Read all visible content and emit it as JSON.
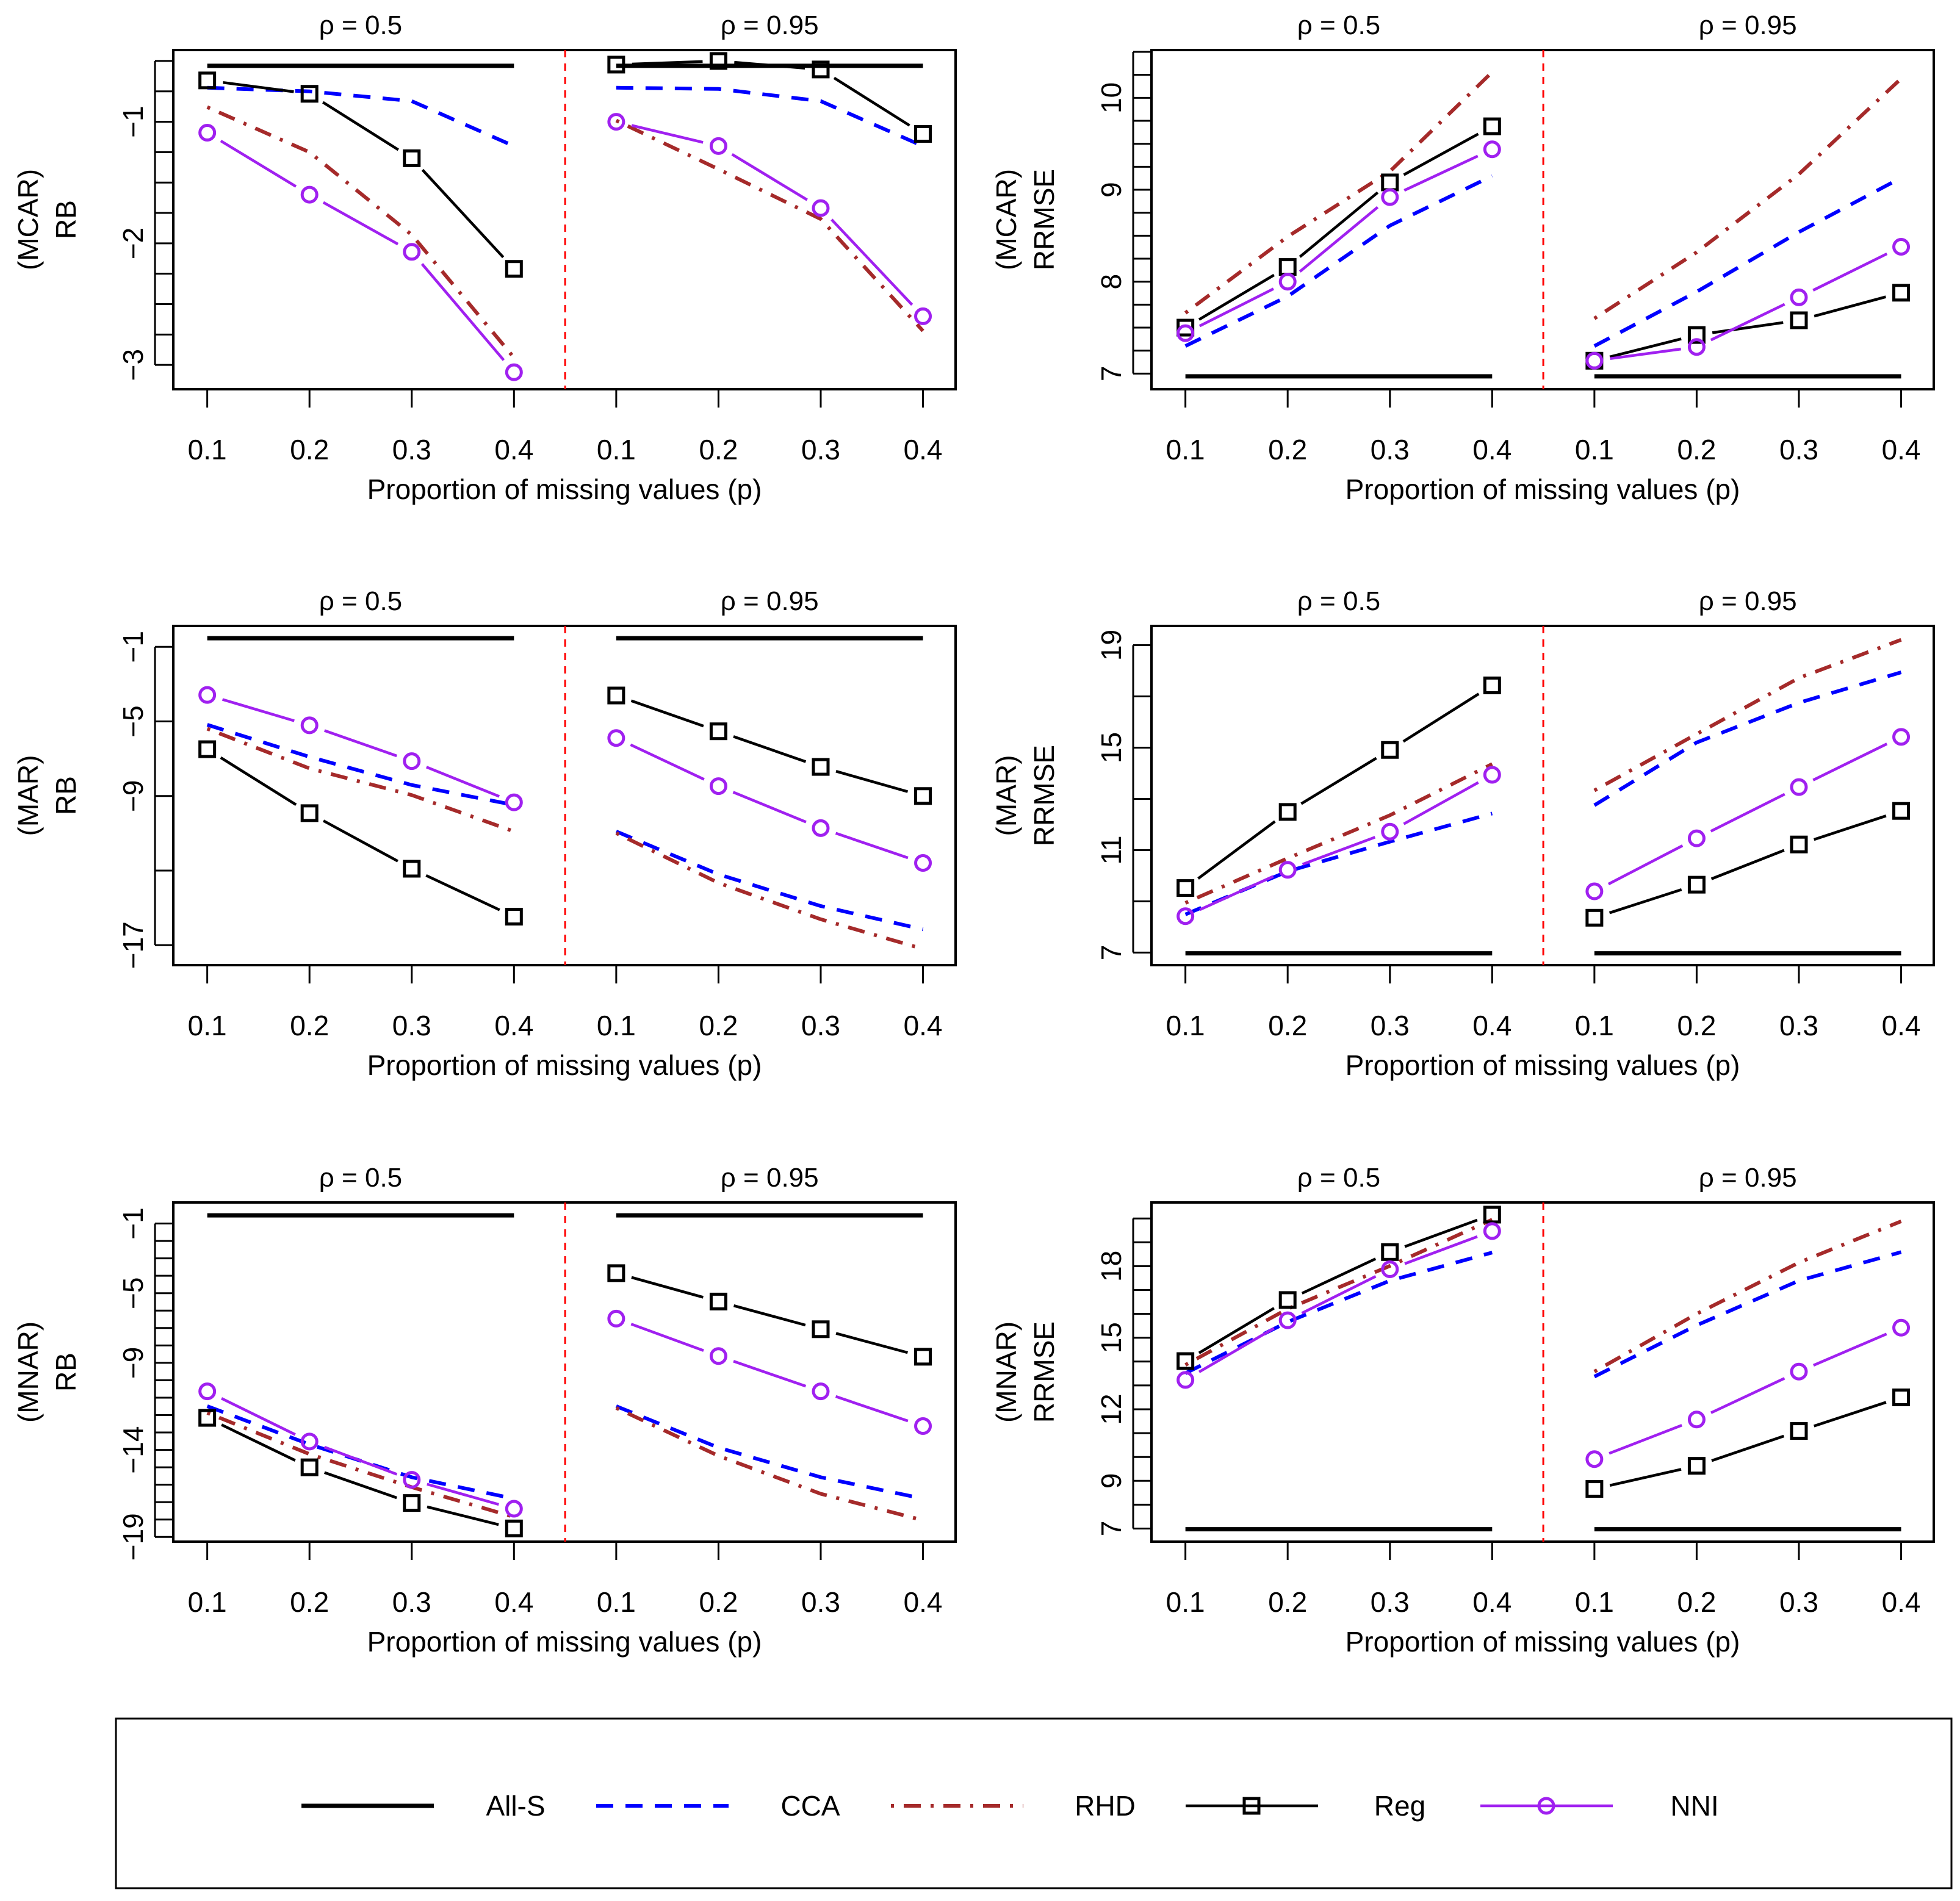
{
  "chart_data": [
    {
      "type": "line",
      "ylabel_lines": [
        "(MCAR)",
        "RB"
      ],
      "xlabel": "Proportion of missing values (p)",
      "facets": [
        "ρ = 0.5",
        "ρ = 0.95"
      ],
      "x": [
        0.1,
        0.2,
        0.3,
        0.4
      ],
      "x_tick_labels": [
        "0.1",
        "0.2",
        "0.3",
        "0.4"
      ],
      "ylim": [
        -3.2,
        -0.41
      ],
      "yticks": [
        -0.5,
        -0.75,
        -1,
        -1.25,
        -1.5,
        -1.75,
        -2,
        -2.25,
        -2.5,
        -2.75,
        -3
      ],
      "ytick_labels": [
        {
          "value": -1,
          "text": "−1"
        },
        {
          "value": -2,
          "text": "−2"
        },
        {
          "value": -3,
          "text": "−3"
        }
      ],
      "series": [
        {
          "name": "All-S",
          "values": [
            [
              -0.54,
              -0.54,
              -0.54,
              -0.54
            ],
            [
              -0.54,
              -0.54,
              -0.54,
              -0.54
            ]
          ]
        },
        {
          "name": "CCA",
          "values": [
            [
              -0.72,
              -0.75,
              -0.83,
              -1.2
            ],
            [
              -0.72,
              -0.73,
              -0.83,
              -1.2
            ]
          ]
        },
        {
          "name": "RHD",
          "values": [
            [
              -0.88,
              -1.25,
              -1.93,
              -2.94
            ],
            [
              -0.99,
              -1.39,
              -1.8,
              -2.72
            ]
          ]
        },
        {
          "name": "Reg",
          "values": [
            [
              -0.66,
              -0.77,
              -1.3,
              -2.21
            ],
            [
              -0.53,
              -0.5,
              -0.57,
              -1.1
            ]
          ]
        },
        {
          "name": "NNI",
          "values": [
            [
              -1.09,
              -1.6,
              -2.07,
              -3.06
            ],
            [
              -1.0,
              -1.2,
              -1.71,
              -2.6
            ]
          ]
        }
      ]
    },
    {
      "type": "line",
      "ylabel_lines": [
        "(MCAR)",
        "RRMSE"
      ],
      "xlabel": "Proportion of missing values (p)",
      "facets": [
        "ρ = 0.5",
        "ρ = 0.95"
      ],
      "x": [
        0.1,
        0.2,
        0.3,
        0.4
      ],
      "x_tick_labels": [
        "0.1",
        "0.2",
        "0.3",
        "0.4"
      ],
      "ylim": [
        6.83,
        10.52
      ],
      "yticks": [
        7,
        7.25,
        7.5,
        7.75,
        8,
        8.25,
        8.5,
        8.75,
        9,
        9.25,
        9.5,
        9.75,
        10,
        10.25,
        10.5
      ],
      "ytick_labels": [
        {
          "value": 7,
          "text": "7"
        },
        {
          "value": 8,
          "text": "8"
        },
        {
          "value": 9,
          "text": "9"
        },
        {
          "value": 10,
          "text": "10"
        }
      ],
      "series": [
        {
          "name": "All-S",
          "values": [
            [
              6.97,
              6.97,
              6.97,
              6.97
            ],
            [
              6.97,
              6.97,
              6.97,
              6.97
            ]
          ]
        },
        {
          "name": "CCA",
          "values": [
            [
              7.3,
              7.84,
              8.61,
              9.15
            ],
            [
              7.3,
              7.89,
              8.54,
              9.13
            ]
          ]
        },
        {
          "name": "RHD",
          "values": [
            [
              7.66,
              8.49,
              9.2,
              10.28
            ],
            [
              7.6,
              8.32,
              9.17,
              10.21
            ]
          ]
        },
        {
          "name": "Reg",
          "values": [
            [
              7.5,
              8.16,
              9.08,
              9.69
            ],
            [
              7.14,
              7.42,
              7.58,
              7.88
            ]
          ]
        },
        {
          "name": "NNI",
          "values": [
            [
              7.44,
              8.0,
              8.92,
              9.44
            ],
            [
              7.14,
              7.29,
              7.83,
              8.38
            ]
          ]
        }
      ]
    },
    {
      "type": "line",
      "ylabel_lines": [
        "(MAR)",
        "RB"
      ],
      "xlabel": "Proportion of missing values (p)",
      "facets": [
        "ρ = 0.5",
        "ρ = 0.95"
      ],
      "x": [
        0.1,
        0.2,
        0.3,
        0.4
      ],
      "x_tick_labels": [
        "0.1",
        "0.2",
        "0.3",
        "0.4"
      ],
      "ylim": [
        -18.07,
        0.12
      ],
      "yticks": [
        -1,
        -5,
        -9,
        -13,
        -17
      ],
      "ytick_labels": [
        {
          "value": -1,
          "text": "−1"
        },
        {
          "value": -5,
          "text": "−5"
        },
        {
          "value": -9,
          "text": "−9"
        },
        {
          "value": -17,
          "text": "−17"
        }
      ],
      "series": [
        {
          "name": "All-S",
          "values": [
            [
              -0.54,
              -0.54,
              -0.54,
              -0.54
            ],
            [
              -0.54,
              -0.54,
              -0.54,
              -0.54
            ]
          ]
        },
        {
          "name": "CCA",
          "values": [
            [
              -5.18,
              -6.9,
              -8.41,
              -9.48
            ],
            [
              -10.9,
              -13.2,
              -14.9,
              -16.15
            ]
          ]
        },
        {
          "name": "RHD",
          "values": [
            [
              -5.39,
              -7.52,
              -8.95,
              -10.9
            ],
            [
              -10.99,
              -13.66,
              -15.61,
              -17.2
            ]
          ]
        },
        {
          "name": "Reg",
          "values": [
            [
              -6.49,
              -9.92,
              -12.9,
              -15.47
            ],
            [
              -3.61,
              -5.53,
              -7.44,
              -9.0
            ]
          ]
        },
        {
          "name": "NNI",
          "values": [
            [
              -3.58,
              -5.21,
              -7.13,
              -9.34
            ],
            [
              -5.89,
              -8.47,
              -10.72,
              -12.59
            ]
          ]
        }
      ]
    },
    {
      "type": "line",
      "ylabel_lines": [
        "(MAR)",
        "RRMSE"
      ],
      "xlabel": "Proportion of missing values (p)",
      "facets": [
        "ρ = 0.5",
        "ρ = 0.95"
      ],
      "x": [
        0.1,
        0.2,
        0.3,
        0.4
      ],
      "x_tick_labels": [
        "0.1",
        "0.2",
        "0.3",
        "0.4"
      ],
      "ylim": [
        6.51,
        19.75
      ],
      "yticks": [
        7,
        9,
        11,
        13,
        15,
        17,
        19
      ],
      "ytick_labels": [
        {
          "value": 7,
          "text": "7"
        },
        {
          "value": 11,
          "text": "11"
        },
        {
          "value": 15,
          "text": "15"
        },
        {
          "value": 19,
          "text": "19"
        }
      ],
      "series": [
        {
          "name": "All-S",
          "values": [
            [
              6.97,
              6.97,
              6.97,
              6.97
            ],
            [
              6.97,
              6.97,
              6.97,
              6.97
            ]
          ]
        },
        {
          "name": "CCA",
          "values": [
            [
              8.49,
              10.17,
              11.33,
              12.43
            ],
            [
              12.75,
              15.2,
              16.75,
              17.94
            ]
          ]
        },
        {
          "name": "RHD",
          "values": [
            [
              8.94,
              10.68,
              12.36,
              14.36
            ],
            [
              13.33,
              15.53,
              17.72,
              19.21
            ]
          ]
        },
        {
          "name": "Reg",
          "values": [
            [
              9.52,
              12.49,
              14.91,
              17.43
            ],
            [
              8.36,
              9.65,
              11.22,
              12.53
            ]
          ]
        },
        {
          "name": "NNI",
          "values": [
            [
              8.42,
              10.23,
              11.72,
              13.94
            ],
            [
              9.39,
              11.46,
              13.46,
              15.42
            ]
          ]
        }
      ]
    },
    {
      "type": "line",
      "ylabel_lines": [
        "(MNAR)",
        "RB"
      ],
      "xlabel": "Proportion of missing values (p)",
      "facets": [
        "ρ = 0.5",
        "ρ = 0.95"
      ],
      "x": [
        0.1,
        0.2,
        0.3,
        0.4
      ],
      "x_tick_labels": [
        "0.1",
        "0.2",
        "0.3",
        "0.4"
      ],
      "ylim": [
        -19.27,
        0.21
      ],
      "yticks": [
        -1,
        -2,
        -3,
        -4,
        -5,
        -6,
        -7,
        -8,
        -9,
        -10,
        -11,
        -12,
        -13,
        -14,
        -15,
        -16,
        -17,
        -18,
        -19
      ],
      "ytick_labels": [
        {
          "value": -1,
          "text": "−1"
        },
        {
          "value": -5,
          "text": "−5"
        },
        {
          "value": -9,
          "text": "−9"
        },
        {
          "value": -14,
          "text": "−14"
        },
        {
          "value": -19,
          "text": "−19"
        }
      ],
      "series": [
        {
          "name": "All-S",
          "values": [
            [
              -0.53,
              -0.53,
              -0.53,
              -0.53
            ],
            [
              -0.53,
              -0.53,
              -0.53,
              -0.53
            ]
          ]
        },
        {
          "name": "CCA",
          "values": [
            [
              -11.49,
              -13.68,
              -15.57,
              -16.8
            ],
            [
              -11.49,
              -13.87,
              -15.57,
              -16.8
            ]
          ]
        },
        {
          "name": "RHD",
          "values": [
            [
              -11.87,
              -14.24,
              -16.14,
              -17.85
            ],
            [
              -11.59,
              -14.34,
              -16.52,
              -18.04
            ]
          ]
        },
        {
          "name": "Reg",
          "values": [
            [
              -12.16,
              -15.0,
              -17.05,
              -18.51
            ],
            [
              -3.85,
              -5.48,
              -7.07,
              -8.65
            ]
          ]
        },
        {
          "name": "NNI",
          "values": [
            [
              -10.64,
              -13.52,
              -15.72,
              -17.38
            ],
            [
              -6.46,
              -8.61,
              -10.64,
              -12.63
            ]
          ]
        }
      ]
    },
    {
      "type": "line",
      "ylabel_lines": [
        "(MNAR)",
        "RRMSE"
      ],
      "xlabel": "Proportion of missing values (p)",
      "facets": [
        "ρ = 0.5",
        "ρ = 0.95"
      ],
      "x": [
        0.1,
        0.2,
        0.3,
        0.4
      ],
      "x_tick_labels": [
        "0.1",
        "0.2",
        "0.3",
        "0.4"
      ],
      "ylim": [
        6.45,
        20.67
      ],
      "yticks": [
        7,
        8,
        9,
        10,
        11,
        12,
        13,
        14,
        15,
        16,
        17,
        18,
        19,
        20
      ],
      "ytick_labels": [
        {
          "value": 7,
          "text": "7"
        },
        {
          "value": 9,
          "text": "9"
        },
        {
          "value": 12,
          "text": "12"
        },
        {
          "value": 15,
          "text": "15"
        },
        {
          "value": 18,
          "text": "18"
        }
      ],
      "series": [
        {
          "name": "All-S",
          "values": [
            [
              6.97,
              6.97,
              6.97,
              6.97
            ],
            [
              6.97,
              6.97,
              6.97,
              6.97
            ]
          ]
        },
        {
          "name": "CCA",
          "values": [
            [
              13.51,
              15.66,
              17.39,
              18.57
            ],
            [
              13.37,
              15.52,
              17.39,
              18.59
            ]
          ]
        },
        {
          "name": "RHD",
          "values": [
            [
              13.86,
              16.21,
              18.01,
              19.95
            ],
            [
              13.58,
              16.0,
              18.15,
              19.88
            ]
          ]
        },
        {
          "name": "Reg",
          "values": [
            [
              14.02,
              16.58,
              18.59,
              20.16
            ],
            [
              8.66,
              9.63,
              11.09,
              12.5
            ]
          ]
        },
        {
          "name": "NNI",
          "values": [
            [
              13.23,
              15.73,
              17.87,
              19.47
            ],
            [
              9.91,
              11.57,
              13.58,
              15.42
            ]
          ]
        }
      ]
    }
  ],
  "legend": [
    {
      "name": "All-S",
      "color": "#000000",
      "style": "solid",
      "marker": "none"
    },
    {
      "name": "CCA",
      "color": "#0000FF",
      "style": "dashed",
      "marker": "none"
    },
    {
      "name": "RHD",
      "color": "#A52A2A",
      "style": "dotdash",
      "marker": "none"
    },
    {
      "name": "Reg",
      "color": "#000000",
      "style": "solid",
      "marker": "square"
    },
    {
      "name": "NNI",
      "color": "#A020F0",
      "style": "solid",
      "marker": "circle"
    }
  ],
  "separator_color": "#FF0000"
}
